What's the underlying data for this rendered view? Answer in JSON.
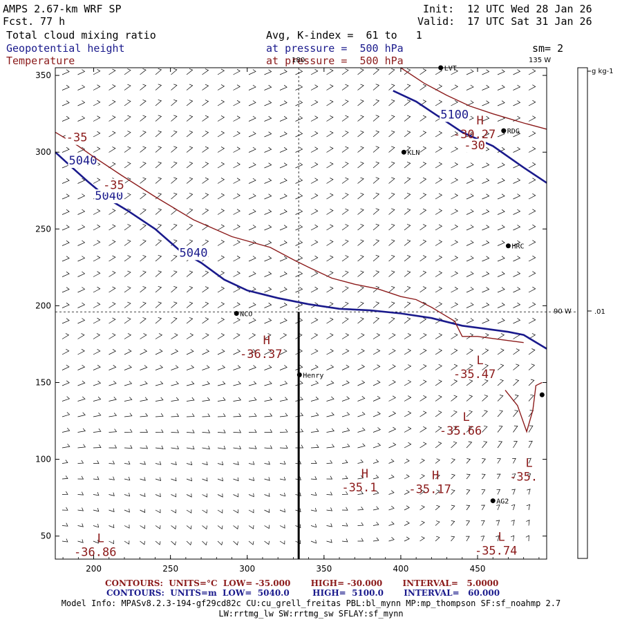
{
  "header": {
    "model_title": "AMPS 2.67-km WRF SP",
    "forecast_label": "Fcst.",
    "forecast_hours": "77 h",
    "init_label": "Init:",
    "init_time": "12 UTC Wed 28 Jan 26",
    "valid_label": "Valid:",
    "valid_time": "17 UTC Sat 31 Jan 26",
    "field1": "Total cloud mixing ratio",
    "field2": "Geopotential height",
    "field3": "Temperature",
    "field1_desc": "Avg, K-index =  61 to   1",
    "field2_desc": "at pressure =  500 hPa",
    "field3_desc": "at pressure =  500 hPa",
    "smoothing": "sm= 2"
  },
  "colors": {
    "height_contour": "#1a1a8c",
    "temperature_contour": "#8b1a1a",
    "barb": "#000000"
  },
  "chart_data": {
    "type": "contour_map",
    "xlim": [
      175,
      495
    ],
    "ylim": [
      35,
      355
    ],
    "x_ticks": [
      "200",
      "250",
      "300",
      "350",
      "400",
      "450"
    ],
    "y_ticks": [
      "50",
      "100",
      "150",
      "200",
      "250",
      "300",
      "350"
    ],
    "meridian_labels": {
      "top": "180",
      "top_right": "135 W",
      "right": "90 W"
    },
    "reference_lines": {
      "vertical_x": 333.5,
      "horizontal_y": 196
    },
    "colorbar": {
      "unit": "g kg-1",
      "tick_value": ".01",
      "tick_at_fraction": 0.5
    },
    "stations": [
      {
        "name": "NCO",
        "x": 293,
        "y": 195
      },
      {
        "name": "KLN",
        "x": 402,
        "y": 300
      },
      {
        "name": "RDG",
        "x": 467,
        "y": 314
      },
      {
        "name": "HRC",
        "x": 470,
        "y": 239
      },
      {
        "name": "Henry",
        "x": 334,
        "y": 155
      },
      {
        "name": "AG2",
        "x": 460,
        "y": 73
      },
      {
        "name": "LVT",
        "x": 426,
        "y": 355
      }
    ],
    "extra_station_marker": {
      "x": 492,
      "y": 142
    },
    "height_contours": [
      {
        "label": "5040",
        "label_positions": [
          [
            193,
            292
          ],
          [
            210,
            269
          ],
          [
            265,
            232
          ]
        ],
        "points": [
          [
            175,
            300
          ],
          [
            186,
            290
          ],
          [
            196,
            281
          ],
          [
            202,
            276
          ],
          [
            212,
            268
          ],
          [
            222,
            262
          ],
          [
            240,
            250
          ],
          [
            256,
            236
          ],
          [
            270,
            228
          ],
          [
            285,
            217
          ],
          [
            300,
            210
          ],
          [
            320,
            205
          ],
          [
            340,
            201
          ],
          [
            360,
            198
          ],
          [
            380,
            197
          ],
          [
            400,
            195
          ],
          [
            420,
            192
          ],
          [
            440,
            187
          ],
          [
            455,
            185
          ],
          [
            470,
            183
          ],
          [
            480,
            181
          ],
          [
            495,
            172
          ]
        ]
      },
      {
        "label": "5100",
        "label_positions": [
          [
            435,
            322
          ]
        ],
        "points": [
          [
            395,
            340
          ],
          [
            410,
            333
          ],
          [
            422,
            325
          ],
          [
            440,
            313
          ],
          [
            460,
            304
          ],
          [
            480,
            290
          ],
          [
            495,
            280
          ]
        ]
      }
    ],
    "temperature_contours": [
      {
        "label": "-35",
        "label_positions": [
          [
            189,
            307
          ],
          [
            213,
            276
          ]
        ],
        "points": [
          [
            175,
            313
          ],
          [
            190,
            304
          ],
          [
            200,
            297
          ],
          [
            218,
            285
          ],
          [
            240,
            271
          ],
          [
            265,
            256
          ],
          [
            290,
            245
          ],
          [
            315,
            238
          ],
          [
            330,
            230
          ],
          [
            340,
            225
          ],
          [
            355,
            218
          ],
          [
            370,
            214
          ],
          [
            385,
            211
          ],
          [
            400,
            206
          ],
          [
            410,
            204
          ],
          [
            420,
            199
          ],
          [
            425,
            196
          ],
          [
            435,
            190
          ],
          [
            440,
            180
          ],
          [
            450,
            180
          ],
          [
            465,
            178
          ],
          [
            480,
            176
          ]
        ]
      },
      {
        "label": "-30",
        "label_positions": [
          [
            448,
            302
          ]
        ],
        "points": [
          [
            400,
            355
          ],
          [
            415,
            345
          ],
          [
            430,
            337
          ],
          [
            445,
            330
          ],
          [
            460,
            325
          ],
          [
            470,
            322
          ],
          [
            480,
            319
          ],
          [
            495,
            315
          ]
        ]
      },
      {
        "label": "-35 (east)",
        "label_positions": [],
        "points": [
          [
            468,
            145
          ],
          [
            476,
            135
          ],
          [
            482,
            118
          ],
          [
            486,
            132
          ],
          [
            488,
            148
          ],
          [
            492,
            150
          ]
        ]
      }
    ],
    "extrema": [
      {
        "type": "H",
        "value": "-36.37",
        "x": 309,
        "y": 175
      },
      {
        "type": "L",
        "value": "-35.47",
        "x": 448,
        "y": 162
      },
      {
        "type": "L",
        "value": "-35.66",
        "x": 439,
        "y": 125
      },
      {
        "type": "H",
        "value": "-35.1",
        "x": 373,
        "y": 88
      },
      {
        "type": "H",
        "value": "-35.17",
        "x": 419,
        "y": 87
      },
      {
        "type": "H",
        "value": "-30.27",
        "x": 448,
        "y": 318
      },
      {
        "type": "L",
        "value": "-35.",
        "x": 480,
        "y": 95
      },
      {
        "type": "L",
        "value": "-36.86",
        "x": 201,
        "y": 46
      },
      {
        "type": "L",
        "value": "-35.74",
        "x": 462,
        "y": 47
      }
    ]
  },
  "footer": {
    "temp_contours": "CONTOURS:  UNITS=°C  LOW= -35.000       HIGH= -30.000       INTERVAL=   5.0000",
    "height_contours": "CONTOURS:  UNITS=m  LOW=  5040.0        HIGH=  5100.0       INTERVAL=   60.000",
    "model_info_1": "Model Info: MPASv8.2.3-194-gf29cd82c CU:cu_grell_freitas PBL:bl_mynn MP:mp_thompson SF:sf_noahmp 2.7",
    "model_info_2": "LW:rrtmg_lw SW:rrtmg_sw SFLAY:sf_mynn"
  }
}
